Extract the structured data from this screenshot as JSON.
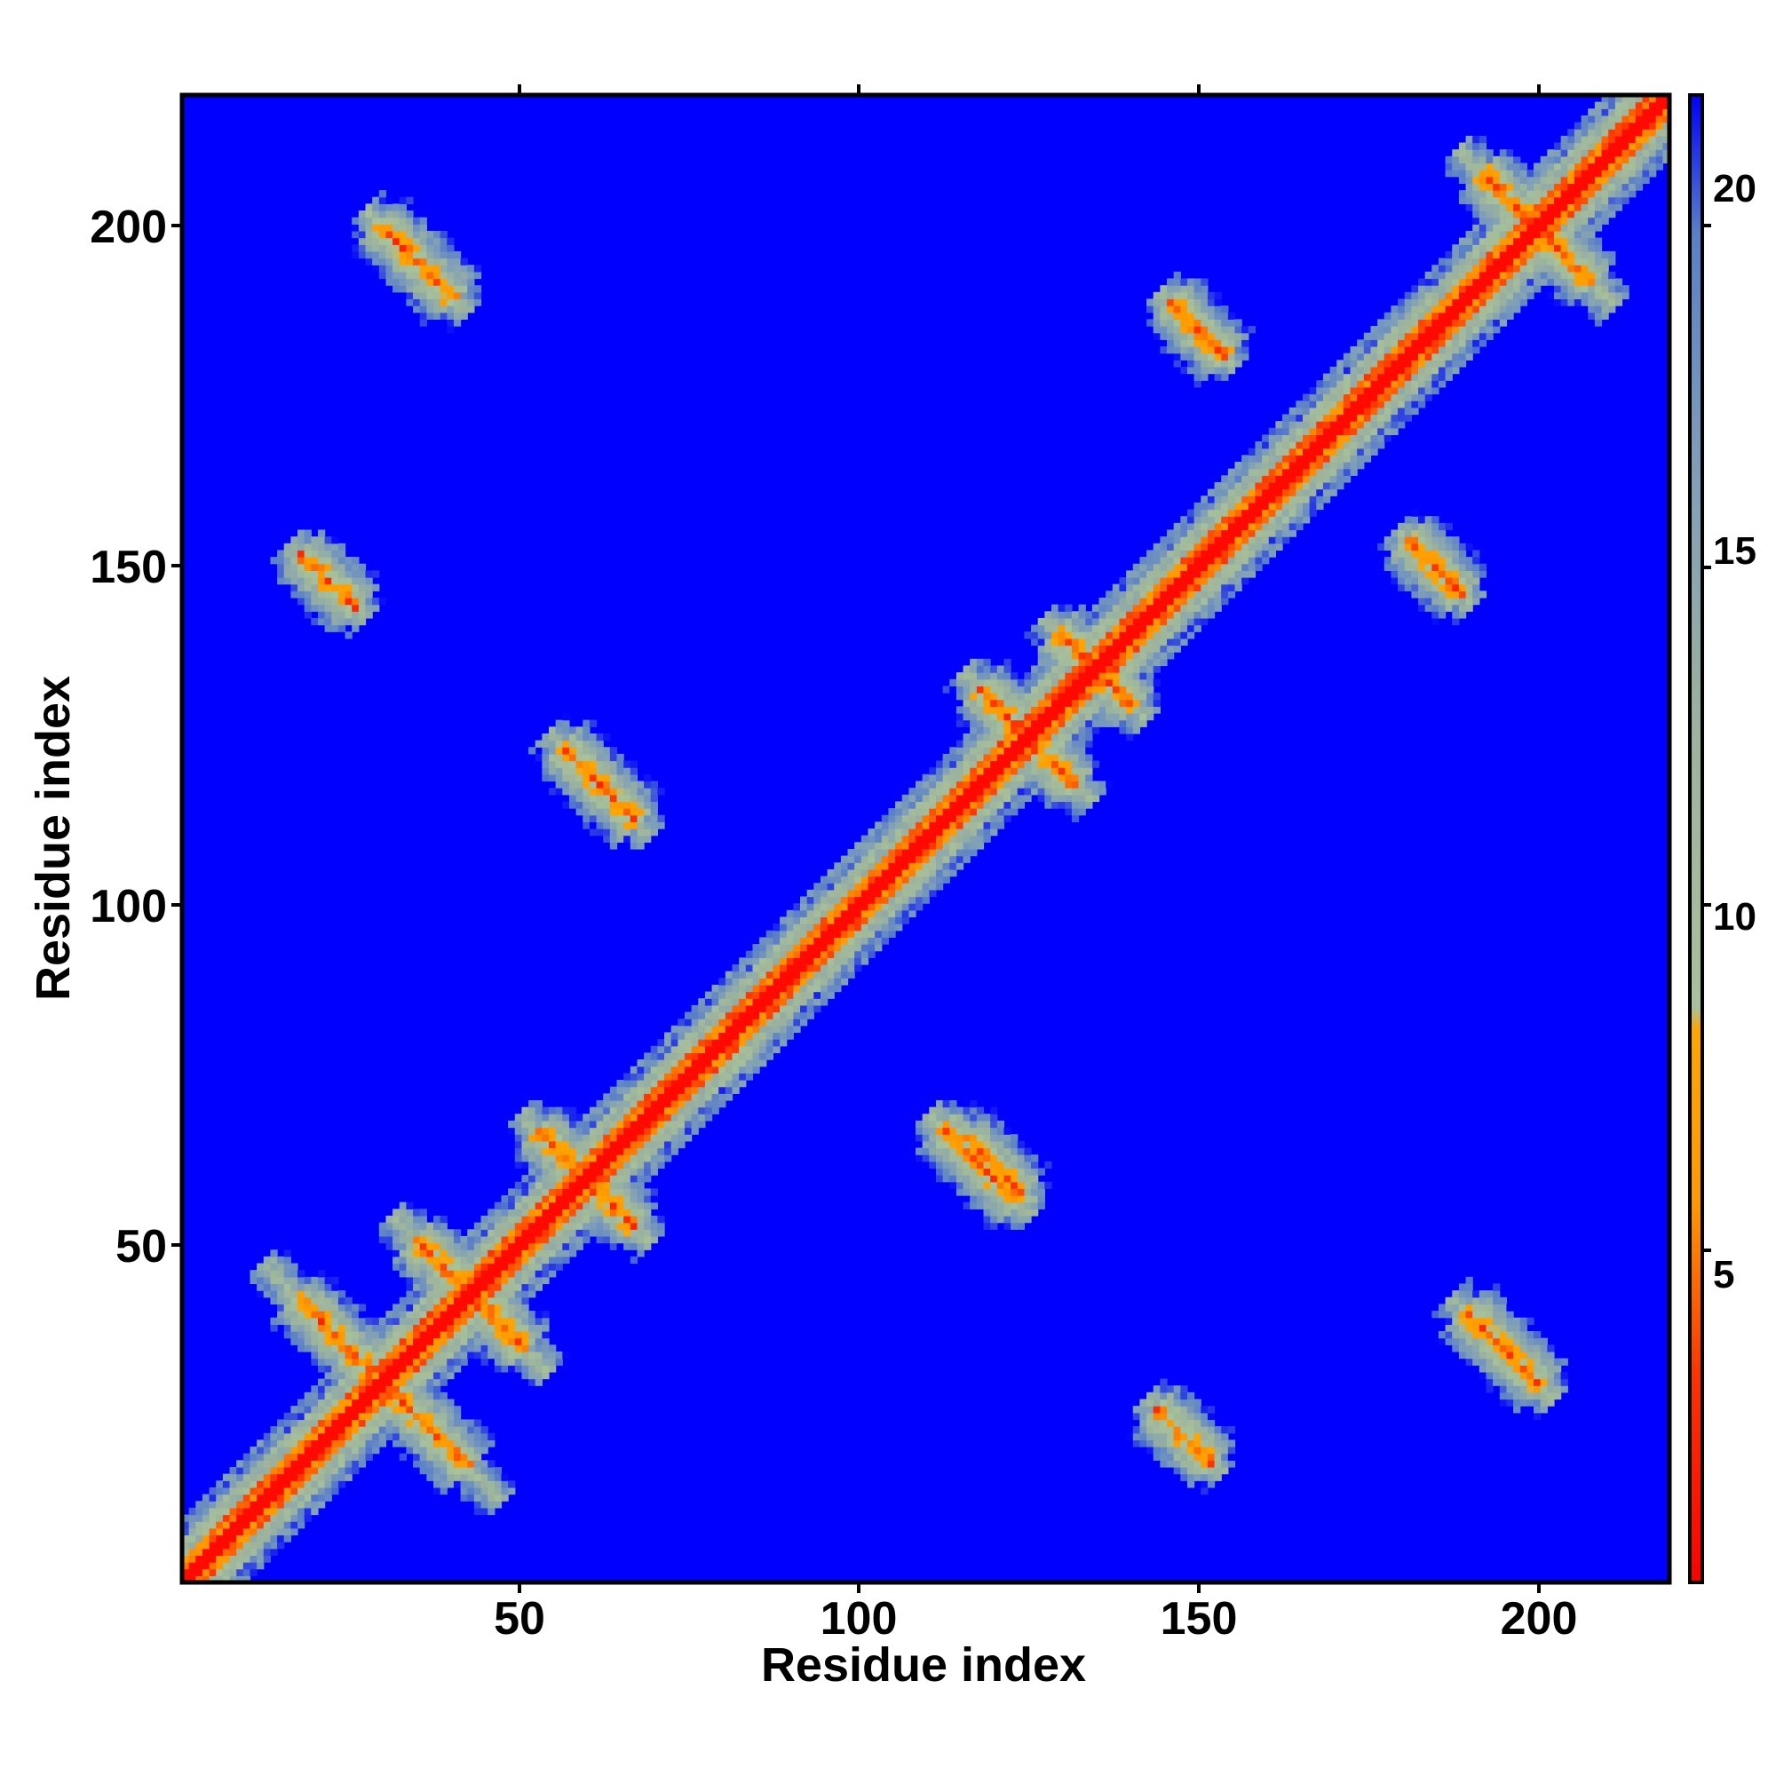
{
  "chart_data": {
    "type": "heatmap",
    "title": "",
    "xlabel": "Residue index",
    "ylabel": "Residue index",
    "x_range": [
      1,
      219
    ],
    "y_range": [
      1,
      219
    ],
    "x_ticks": [
      50,
      100,
      150,
      200
    ],
    "y_ticks": [
      50,
      100,
      150,
      200
    ],
    "x_tick_labels": [
      "50",
      "100",
      "150",
      "200"
    ],
    "y_tick_labels": [
      "50",
      "100",
      "150",
      "200"
    ],
    "colorbar": {
      "range": [
        0,
        21.5
      ],
      "ticks": [
        5,
        10,
        15,
        20
      ],
      "tick_labels": [
        "5",
        "10",
        "15",
        "20"
      ],
      "stops": [
        {
          "value": 0,
          "color": "#ff0000"
        },
        {
          "value": 3,
          "color": "#ff3300"
        },
        {
          "value": 5.5,
          "color": "#ff9900"
        },
        {
          "value": 8,
          "color": "#ffa500"
        },
        {
          "value": 8.3,
          "color": "#a8c29a"
        },
        {
          "value": 12,
          "color": "#9db49c"
        },
        {
          "value": 16,
          "color": "#7f9fb8"
        },
        {
          "value": 19.5,
          "color": "#5a7fc8"
        },
        {
          "value": 21.5,
          "color": "#0000ff"
        }
      ]
    },
    "background_color": "#0000ff",
    "diagonal": {
      "description_value": 0
    },
    "contact_features": [
      {
        "kind": "anti",
        "center": [
          30,
          30
        ],
        "halflen": 18
      },
      {
        "kind": "anti",
        "center": [
          43,
          43
        ],
        "halflen": 12
      },
      {
        "kind": "anti",
        "center": [
          60,
          60
        ],
        "halflen": 10
      },
      {
        "kind": "anti",
        "center": [
          125,
          125
        ],
        "halflen": 10
      },
      {
        "kind": "anti",
        "center": [
          135,
          135
        ],
        "halflen": 8
      },
      {
        "kind": "anti",
        "center": [
          200,
          200
        ],
        "halflen": 12
      },
      {
        "kind": "anti",
        "center": [
          62,
          118
        ],
        "halflen": 8
      },
      {
        "kind": "anti",
        "center": [
          118,
          62
        ],
        "halflen": 8
      },
      {
        "kind": "anti",
        "center": [
          35,
          195
        ],
        "halflen": 8
      },
      {
        "kind": "anti",
        "center": [
          195,
          35
        ],
        "halflen": 8
      },
      {
        "kind": "anti",
        "center": [
          22,
          148
        ],
        "halflen": 6
      },
      {
        "kind": "anti",
        "center": [
          148,
          22
        ],
        "halflen": 6
      },
      {
        "kind": "anti",
        "center": [
          120,
          62
        ],
        "halflen": 6
      },
      {
        "kind": "anti",
        "center": [
          185,
          150
        ],
        "halflen": 6
      },
      {
        "kind": "anti",
        "center": [
          150,
          185
        ],
        "halflen": 6
      }
    ]
  }
}
